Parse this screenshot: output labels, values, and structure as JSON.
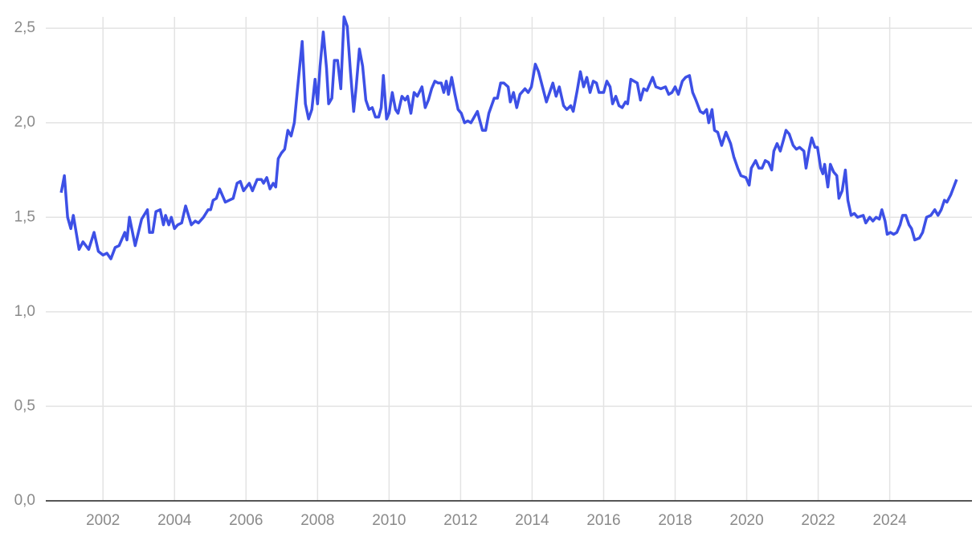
{
  "chart_data": {
    "type": "line",
    "x": [
      2000.83,
      2000.92,
      2001.01,
      2001.1,
      2001.17,
      2001.33,
      2001.44,
      2001.6,
      2001.75,
      2001.87,
      2002.0,
      2002.11,
      2002.22,
      2002.34,
      2002.45,
      2002.61,
      2002.67,
      2002.74,
      2002.9,
      2003.08,
      2003.24,
      2003.3,
      2003.39,
      2003.48,
      2003.6,
      2003.69,
      2003.75,
      2003.84,
      2003.91,
      2004.0,
      2004.09,
      2004.2,
      2004.31,
      2004.47,
      2004.58,
      2004.67,
      2004.81,
      2004.94,
      2005.01,
      2005.08,
      2005.17,
      2005.26,
      2005.42,
      2005.53,
      2005.64,
      2005.75,
      2005.84,
      2005.93,
      2006.09,
      2006.18,
      2006.31,
      2006.43,
      2006.49,
      2006.58,
      2006.67,
      2006.76,
      2006.83,
      2006.9,
      2006.99,
      2007.08,
      2007.17,
      2007.26,
      2007.35,
      2007.44,
      2007.57,
      2007.66,
      2007.75,
      2007.84,
      2007.93,
      2008.0,
      2008.07,
      2008.16,
      2008.25,
      2008.31,
      2008.4,
      2008.47,
      2008.56,
      2008.65,
      2008.74,
      2008.83,
      2008.92,
      2009.01,
      2009.08,
      2009.17,
      2009.26,
      2009.35,
      2009.44,
      2009.53,
      2009.62,
      2009.71,
      2009.78,
      2009.84,
      2009.93,
      2010.0,
      2010.09,
      2010.18,
      2010.25,
      2010.36,
      2010.45,
      2010.52,
      2010.61,
      2010.7,
      2010.79,
      2010.92,
      2011.01,
      2011.1,
      2011.19,
      2011.28,
      2011.37,
      2011.46,
      2011.53,
      2011.6,
      2011.66,
      2011.75,
      2011.84,
      2011.93,
      2012.02,
      2012.11,
      2012.2,
      2012.29,
      2012.38,
      2012.47,
      2012.61,
      2012.7,
      2012.79,
      2012.94,
      2013.03,
      2013.12,
      2013.21,
      2013.33,
      2013.39,
      2013.48,
      2013.57,
      2013.66,
      2013.8,
      2013.89,
      2013.98,
      2014.09,
      2014.18,
      2014.29,
      2014.4,
      2014.49,
      2014.58,
      2014.67,
      2014.76,
      2014.88,
      2014.97,
      2015.08,
      2015.15,
      2015.26,
      2015.35,
      2015.44,
      2015.53,
      2015.62,
      2015.71,
      2015.8,
      2015.87,
      2016.0,
      2016.09,
      2016.18,
      2016.25,
      2016.34,
      2016.43,
      2016.52,
      2016.61,
      2016.67,
      2016.76,
      2016.85,
      2016.94,
      2017.03,
      2017.12,
      2017.21,
      2017.3,
      2017.37,
      2017.46,
      2017.6,
      2017.73,
      2017.82,
      2017.91,
      2018.0,
      2018.09,
      2018.2,
      2018.29,
      2018.4,
      2018.49,
      2018.58,
      2018.7,
      2018.79,
      2018.88,
      2018.94,
      2019.03,
      2019.1,
      2019.19,
      2019.3,
      2019.42,
      2019.55,
      2019.64,
      2019.75,
      2019.84,
      2019.98,
      2020.07,
      2020.13,
      2020.25,
      2020.34,
      2020.43,
      2020.52,
      2020.61,
      2020.7,
      2020.76,
      2020.85,
      2020.94,
      2021.03,
      2021.1,
      2021.19,
      2021.3,
      2021.39,
      2021.48,
      2021.6,
      2021.66,
      2021.75,
      2021.82,
      2021.91,
      2021.98,
      2022.07,
      2022.13,
      2022.18,
      2022.27,
      2022.34,
      2022.43,
      2022.52,
      2022.58,
      2022.67,
      2022.76,
      2022.83,
      2022.92,
      2023.01,
      2023.1,
      2023.26,
      2023.33,
      2023.44,
      2023.53,
      2023.62,
      2023.71,
      2023.78,
      2023.87,
      2023.93,
      2024.02,
      2024.11,
      2024.2,
      2024.29,
      2024.36,
      2024.45,
      2024.54,
      2024.61,
      2024.7,
      2024.83,
      2024.92,
      2025.03,
      2025.15,
      2025.26,
      2025.35,
      2025.44,
      2025.53,
      2025.6,
      2025.71,
      2025.87
    ],
    "values": [
      1.63,
      1.72,
      1.5,
      1.44,
      1.51,
      1.33,
      1.37,
      1.33,
      1.42,
      1.32,
      1.3,
      1.31,
      1.28,
      1.34,
      1.35,
      1.42,
      1.38,
      1.5,
      1.35,
      1.49,
      1.54,
      1.42,
      1.42,
      1.53,
      1.54,
      1.46,
      1.51,
      1.46,
      1.5,
      1.44,
      1.46,
      1.47,
      1.56,
      1.46,
      1.48,
      1.47,
      1.5,
      1.54,
      1.54,
      1.59,
      1.6,
      1.65,
      1.58,
      1.59,
      1.6,
      1.68,
      1.69,
      1.64,
      1.68,
      1.64,
      1.7,
      1.7,
      1.68,
      1.71,
      1.65,
      1.68,
      1.66,
      1.81,
      1.84,
      1.86,
      1.96,
      1.93,
      2.0,
      2.18,
      2.43,
      2.1,
      2.02,
      2.07,
      2.23,
      2.1,
      2.3,
      2.48,
      2.29,
      2.1,
      2.13,
      2.33,
      2.33,
      2.18,
      2.56,
      2.51,
      2.27,
      2.06,
      2.19,
      2.39,
      2.3,
      2.12,
      2.07,
      2.08,
      2.03,
      2.03,
      2.08,
      2.25,
      2.02,
      2.05,
      2.16,
      2.07,
      2.05,
      2.14,
      2.12,
      2.14,
      2.05,
      2.16,
      2.14,
      2.19,
      2.08,
      2.12,
      2.18,
      2.22,
      2.21,
      2.21,
      2.16,
      2.22,
      2.15,
      2.24,
      2.15,
      2.07,
      2.05,
      2.0,
      2.01,
      2.0,
      2.03,
      2.06,
      1.96,
      1.96,
      2.05,
      2.13,
      2.13,
      2.21,
      2.21,
      2.19,
      2.11,
      2.16,
      2.08,
      2.15,
      2.18,
      2.16,
      2.19,
      2.31,
      2.27,
      2.19,
      2.11,
      2.16,
      2.21,
      2.14,
      2.19,
      2.09,
      2.07,
      2.09,
      2.06,
      2.17,
      2.27,
      2.19,
      2.24,
      2.16,
      2.22,
      2.21,
      2.16,
      2.16,
      2.22,
      2.19,
      2.1,
      2.14,
      2.09,
      2.08,
      2.11,
      2.1,
      2.23,
      2.22,
      2.21,
      2.12,
      2.18,
      2.17,
      2.21,
      2.24,
      2.19,
      2.18,
      2.19,
      2.15,
      2.16,
      2.19,
      2.15,
      2.22,
      2.24,
      2.25,
      2.16,
      2.12,
      2.06,
      2.05,
      2.07,
      2.0,
      2.07,
      1.96,
      1.95,
      1.88,
      1.95,
      1.89,
      1.82,
      1.76,
      1.72,
      1.71,
      1.67,
      1.76,
      1.8,
      1.76,
      1.76,
      1.8,
      1.79,
      1.75,
      1.85,
      1.89,
      1.85,
      1.91,
      1.96,
      1.94,
      1.88,
      1.86,
      1.87,
      1.85,
      1.76,
      1.86,
      1.92,
      1.87,
      1.87,
      1.76,
      1.73,
      1.78,
      1.66,
      1.78,
      1.74,
      1.72,
      1.6,
      1.64,
      1.75,
      1.59,
      1.51,
      1.52,
      1.5,
      1.51,
      1.47,
      1.5,
      1.48,
      1.5,
      1.49,
      1.54,
      1.48,
      1.41,
      1.42,
      1.41,
      1.42,
      1.46,
      1.51,
      1.51,
      1.46,
      1.44,
      1.38,
      1.39,
      1.42,
      1.5,
      1.51,
      1.54,
      1.51,
      1.54,
      1.59,
      1.58,
      1.62,
      1.7
    ],
    "color": "#3d50e6",
    "xlim": [
      2000.4,
      2026.3
    ],
    "xticks": [
      2002,
      2004,
      2006,
      2008,
      2010,
      2012,
      2014,
      2016,
      2018,
      2020,
      2022,
      2024
    ],
    "ylim": [
      0,
      2.56
    ],
    "yticks": [
      {
        "value": 0,
        "label": "0,0"
      },
      {
        "value": 0.5,
        "label": "0,5"
      },
      {
        "value": 1,
        "label": "1,0"
      },
      {
        "value": 1.5,
        "label": "1,5"
      },
      {
        "value": 2,
        "label": "2,0"
      },
      {
        "value": 2.5,
        "label": "2,5"
      }
    ],
    "grid": true
  }
}
